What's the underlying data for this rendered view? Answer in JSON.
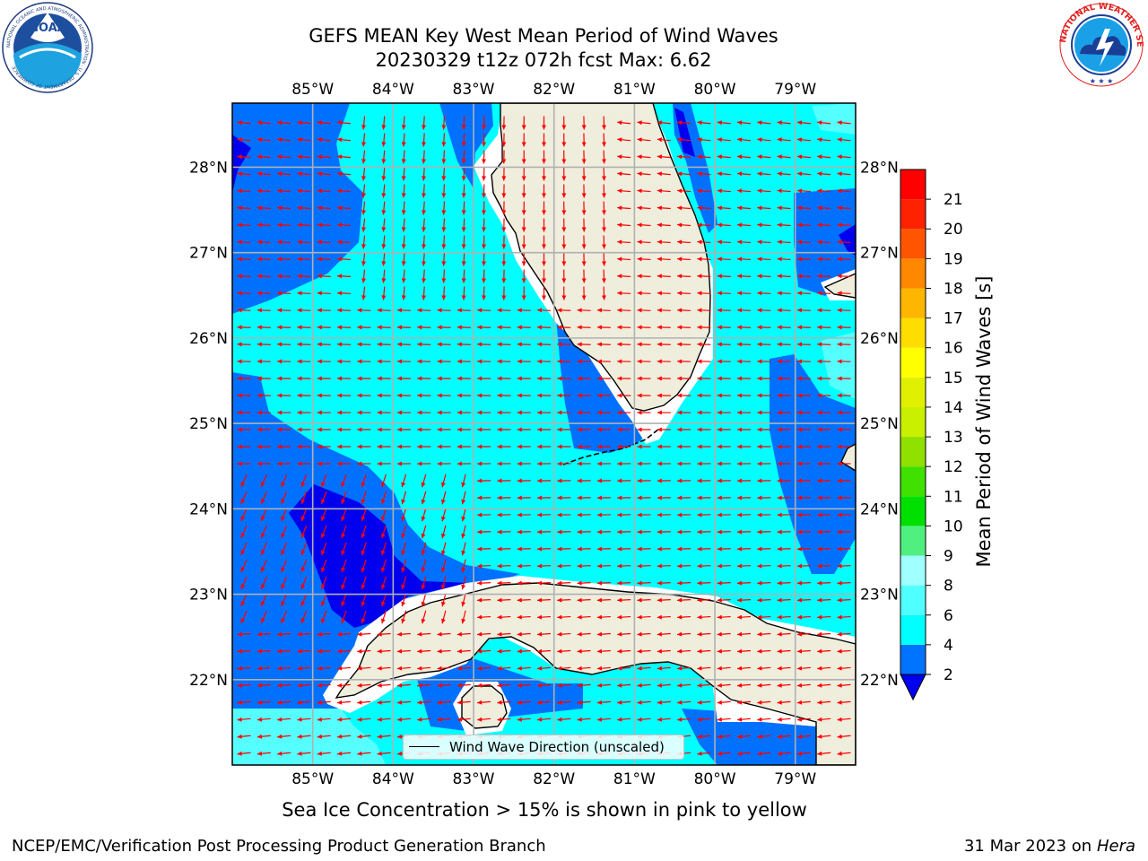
{
  "title": {
    "line1": "GEFS MEAN Key West Mean Period of Wind Waves",
    "line2": "20230329 t12z 072h fcst   Max: 6.62"
  },
  "logos": {
    "left": {
      "name": "noaa-logo",
      "text": "NOAA",
      "ring_text": "NATIONAL OCEANIC AND ATMOSPHERIC ADMINISTRATION · U.S. DEPARTMENT OF COMMERCE"
    },
    "right": {
      "name": "nws-logo",
      "ring_text": "NATIONAL WEATHER SERVICE"
    }
  },
  "map": {
    "lon_range": [
      -86.0,
      -78.25
    ],
    "lat_range": [
      21.0,
      28.75
    ],
    "lon_ticks": [
      "85°W",
      "84°W",
      "83°W",
      "82°W",
      "81°W",
      "80°W",
      "79°W"
    ],
    "lon_values": [
      -85,
      -84,
      -83,
      -82,
      -81,
      -80,
      -79
    ],
    "lat_ticks": [
      "28°N",
      "27°N",
      "26°N",
      "25°N",
      "24°N",
      "23°N",
      "22°N"
    ],
    "lat_values": [
      28,
      27,
      26,
      25,
      24,
      23,
      22
    ],
    "land_color": "#efeedd",
    "ocean_colors": {
      "2-4": "#0070ff",
      "4-6": "#00ffff",
      "6-8": "#55ffff",
      "below-2": "#0000ee"
    },
    "arrow_color": "#ff0000",
    "legend_label": "Wind Wave Direction (unscaled)"
  },
  "colorbar": {
    "title": "Mean Period of Wind Waves [s]",
    "levels": [
      "2",
      "4",
      "6",
      "8",
      "9",
      "10",
      "11",
      "12",
      "13",
      "14",
      "15",
      "16",
      "17",
      "18",
      "19",
      "20",
      "21"
    ],
    "colors": [
      "#0073ff",
      "#00ffff",
      "#50ffff",
      "#a0ffff",
      "#50f080",
      "#00e000",
      "#40e000",
      "#90e000",
      "#c8f000",
      "#e0f000",
      "#ffff00",
      "#ffdd00",
      "#ffb600",
      "#ff8800",
      "#ff5500",
      "#ff2200",
      "#ff0000"
    ],
    "under_color": "#0000ee"
  },
  "footer": {
    "note": "Sea Ice Concentration > 15% is shown in pink to yellow",
    "credit": "NCEP/EMC/Verification Post Processing Product Generation Branch",
    "date": "31 Mar 2023 on",
    "host": "Hera"
  }
}
